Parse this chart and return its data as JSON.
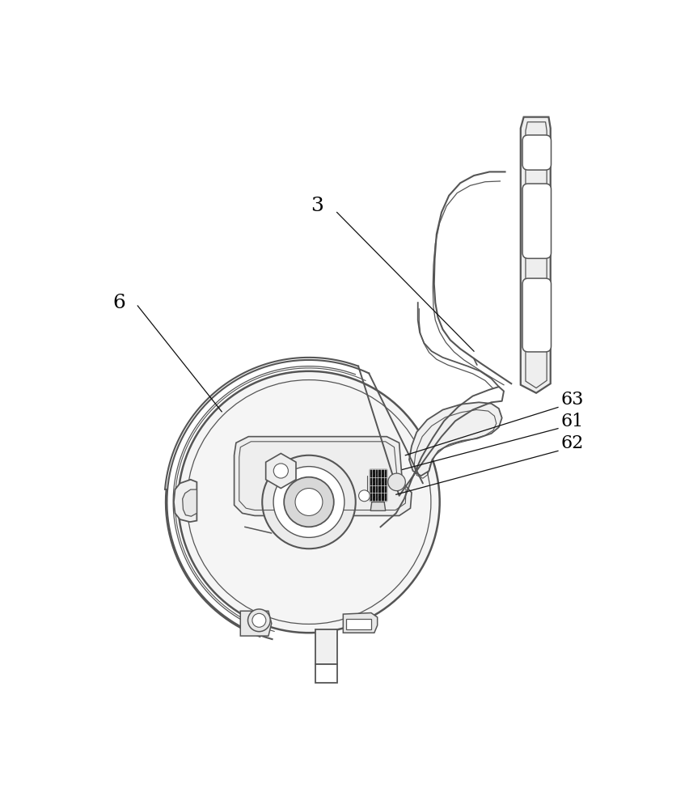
{
  "bg_color": "#ffffff",
  "lc": "#555555",
  "lc_dark": "#333333",
  "figsize": [
    8.52,
    10.0
  ],
  "dpi": 100,
  "label_3": "3",
  "label_6": "6",
  "label_61": "61",
  "label_62": "62",
  "label_63": "63"
}
